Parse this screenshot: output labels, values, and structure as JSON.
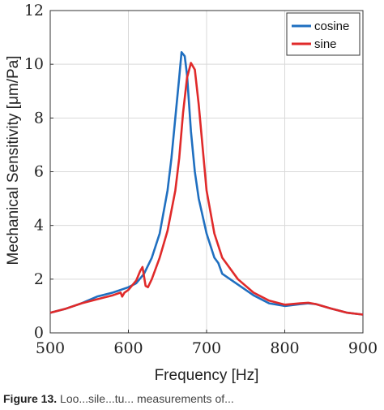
{
  "caption": {
    "label": "Figure 13.",
    "text": "Loo...sile...tu... measurements of... "
  },
  "chart_data": {
    "type": "line",
    "title": "",
    "xlabel": "Frequency [Hz]",
    "ylabel": "Mechanical Sensitivity [μm/Pa]",
    "xlim": [
      500,
      900
    ],
    "ylim": [
      0,
      12
    ],
    "xticks": [
      500,
      600,
      700,
      800,
      900
    ],
    "yticks": [
      0,
      2,
      4,
      6,
      8,
      10,
      12
    ],
    "xtick_labels": [
      "500",
      "600",
      "700",
      "800",
      "900"
    ],
    "ytick_labels": [
      "0",
      "2",
      "4",
      "6",
      "8",
      "10",
      "12"
    ],
    "grid": true,
    "legend_position": "top-right",
    "series": [
      {
        "name": "cosine",
        "color": "#1f6fc0",
        "x": [
          500,
          520,
          540,
          560,
          580,
          600,
          610,
          620,
          630,
          640,
          650,
          655,
          660,
          665,
          668,
          672,
          675,
          680,
          685,
          690,
          700,
          710,
          715,
          720,
          740,
          760,
          780,
          800,
          820,
          830,
          840,
          860,
          880,
          900
        ],
        "y": [
          0.75,
          0.9,
          1.1,
          1.35,
          1.5,
          1.7,
          1.85,
          2.2,
          2.8,
          3.7,
          5.3,
          6.5,
          8.0,
          9.5,
          10.45,
          10.3,
          9.6,
          7.5,
          6.0,
          5.0,
          3.7,
          2.8,
          2.6,
          2.2,
          1.8,
          1.4,
          1.1,
          1.0,
          1.07,
          1.1,
          1.07,
          0.9,
          0.75,
          0.68
        ]
      },
      {
        "name": "sine",
        "color": "#e02a2a",
        "x": [
          500,
          520,
          540,
          560,
          580,
          590,
          592,
          595,
          600,
          610,
          615,
          618,
          620,
          622,
          625,
          630,
          640,
          650,
          660,
          665,
          670,
          675,
          680,
          685,
          690,
          700,
          710,
          720,
          740,
          760,
          780,
          800,
          820,
          830,
          840,
          860,
          880,
          900
        ],
        "y": [
          0.75,
          0.9,
          1.1,
          1.25,
          1.4,
          1.5,
          1.35,
          1.5,
          1.6,
          1.95,
          2.3,
          2.45,
          2.1,
          1.75,
          1.7,
          2.0,
          2.8,
          3.8,
          5.3,
          6.5,
          8.2,
          9.5,
          10.05,
          9.8,
          8.5,
          5.3,
          3.7,
          2.8,
          2.0,
          1.5,
          1.2,
          1.05,
          1.1,
          1.12,
          1.07,
          0.9,
          0.75,
          0.68
        ]
      }
    ]
  }
}
